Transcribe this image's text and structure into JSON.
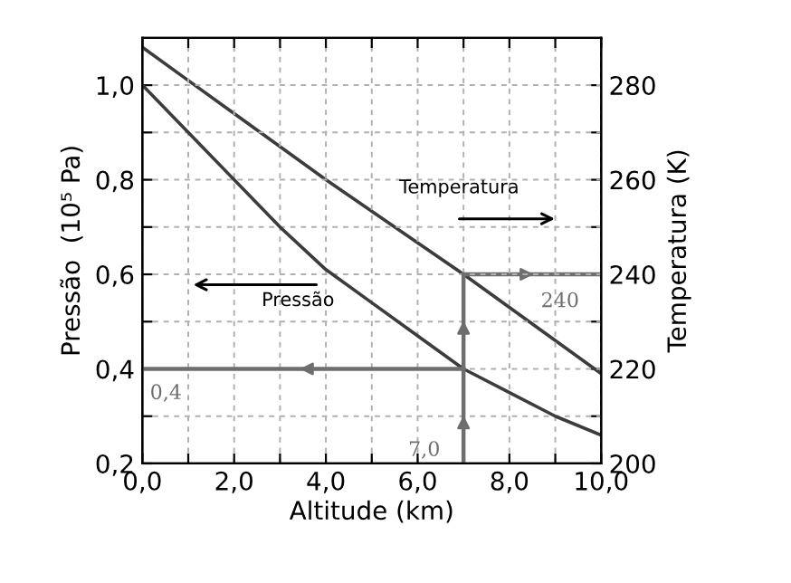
{
  "chart_data": {
    "type": "line",
    "xlabel": "Altitude (km)",
    "ylabel": "Pressão  (10⁵ Pa)",
    "y2label": "Temperatura (K)",
    "xlim": [
      0,
      10
    ],
    "ylim": [
      0.2,
      1.1
    ],
    "y2lim": [
      200,
      290
    ],
    "xticks": [
      {
        "value": 0,
        "label": "0,0"
      },
      {
        "value": 1,
        "label": null
      },
      {
        "value": 2,
        "label": "2,0"
      },
      {
        "value": 3,
        "label": null
      },
      {
        "value": 4,
        "label": "4,0"
      },
      {
        "value": 5,
        "label": null
      },
      {
        "value": 6,
        "label": "6,0"
      },
      {
        "value": 7,
        "label": null
      },
      {
        "value": 8,
        "label": "8,0"
      },
      {
        "value": 9,
        "label": null
      },
      {
        "value": 10,
        "label": "10,0"
      }
    ],
    "yticks": [
      {
        "value": 0.2,
        "label": "0,2"
      },
      {
        "value": 0.3,
        "label": null
      },
      {
        "value": 0.4,
        "label": "0,4"
      },
      {
        "value": 0.5,
        "label": null
      },
      {
        "value": 0.6,
        "label": "0,6"
      },
      {
        "value": 0.7,
        "label": null
      },
      {
        "value": 0.8,
        "label": "0,8"
      },
      {
        "value": 0.9,
        "label": null
      },
      {
        "value": 1.0,
        "label": "1,0"
      }
    ],
    "y2ticks": [
      200,
      {
        "value": 210,
        "label": null
      },
      220,
      {
        "value": 230,
        "label": null
      },
      240,
      {
        "value": 250,
        "label": null
      },
      260,
      {
        "value": 270,
        "label": null
      },
      280
    ],
    "grid": true,
    "line_style": "solid",
    "marker": "none",
    "series": [
      {
        "axis": "y",
        "color": "#3c3c3c",
        "x": [
          0,
          1,
          2,
          3,
          4,
          5,
          6,
          7,
          8,
          9,
          10
        ],
        "values": [
          1.0,
          0.9,
          0.8,
          0.7,
          0.61,
          0.54,
          0.47,
          0.4,
          0.35,
          0.3,
          0.26
        ]
      },
      {
        "axis": "y2",
        "color": "#3c3c3c",
        "x": [
          0,
          1,
          4,
          7,
          10
        ],
        "values": [
          288,
          281,
          260,
          240,
          219
        ]
      },
      {
        "axis": "y",
        "color": "#6e6e6e",
        "x": [
          7,
          0
        ],
        "values": [
          0.4,
          0.4
        ]
      },
      {
        "axis": "y",
        "color": "#6e6e6e",
        "x": [
          7,
          7,
          7
        ],
        "values": [
          0.2,
          0.4,
          0.6
        ]
      },
      {
        "axis": "y2",
        "color": "#6e6e6e",
        "x": [
          7,
          10
        ],
        "values": [
          240,
          240
        ]
      }
    ],
    "annotations": [
      {
        "text": "0,4",
        "x": 0,
        "y": 0.4
      },
      {
        "text": "7,0",
        "x": 7,
        "y": 0.2
      },
      {
        "text": "240",
        "x": 10,
        "y": 0.6
      },
      "Pressão",
      "Temperatura"
    ]
  }
}
